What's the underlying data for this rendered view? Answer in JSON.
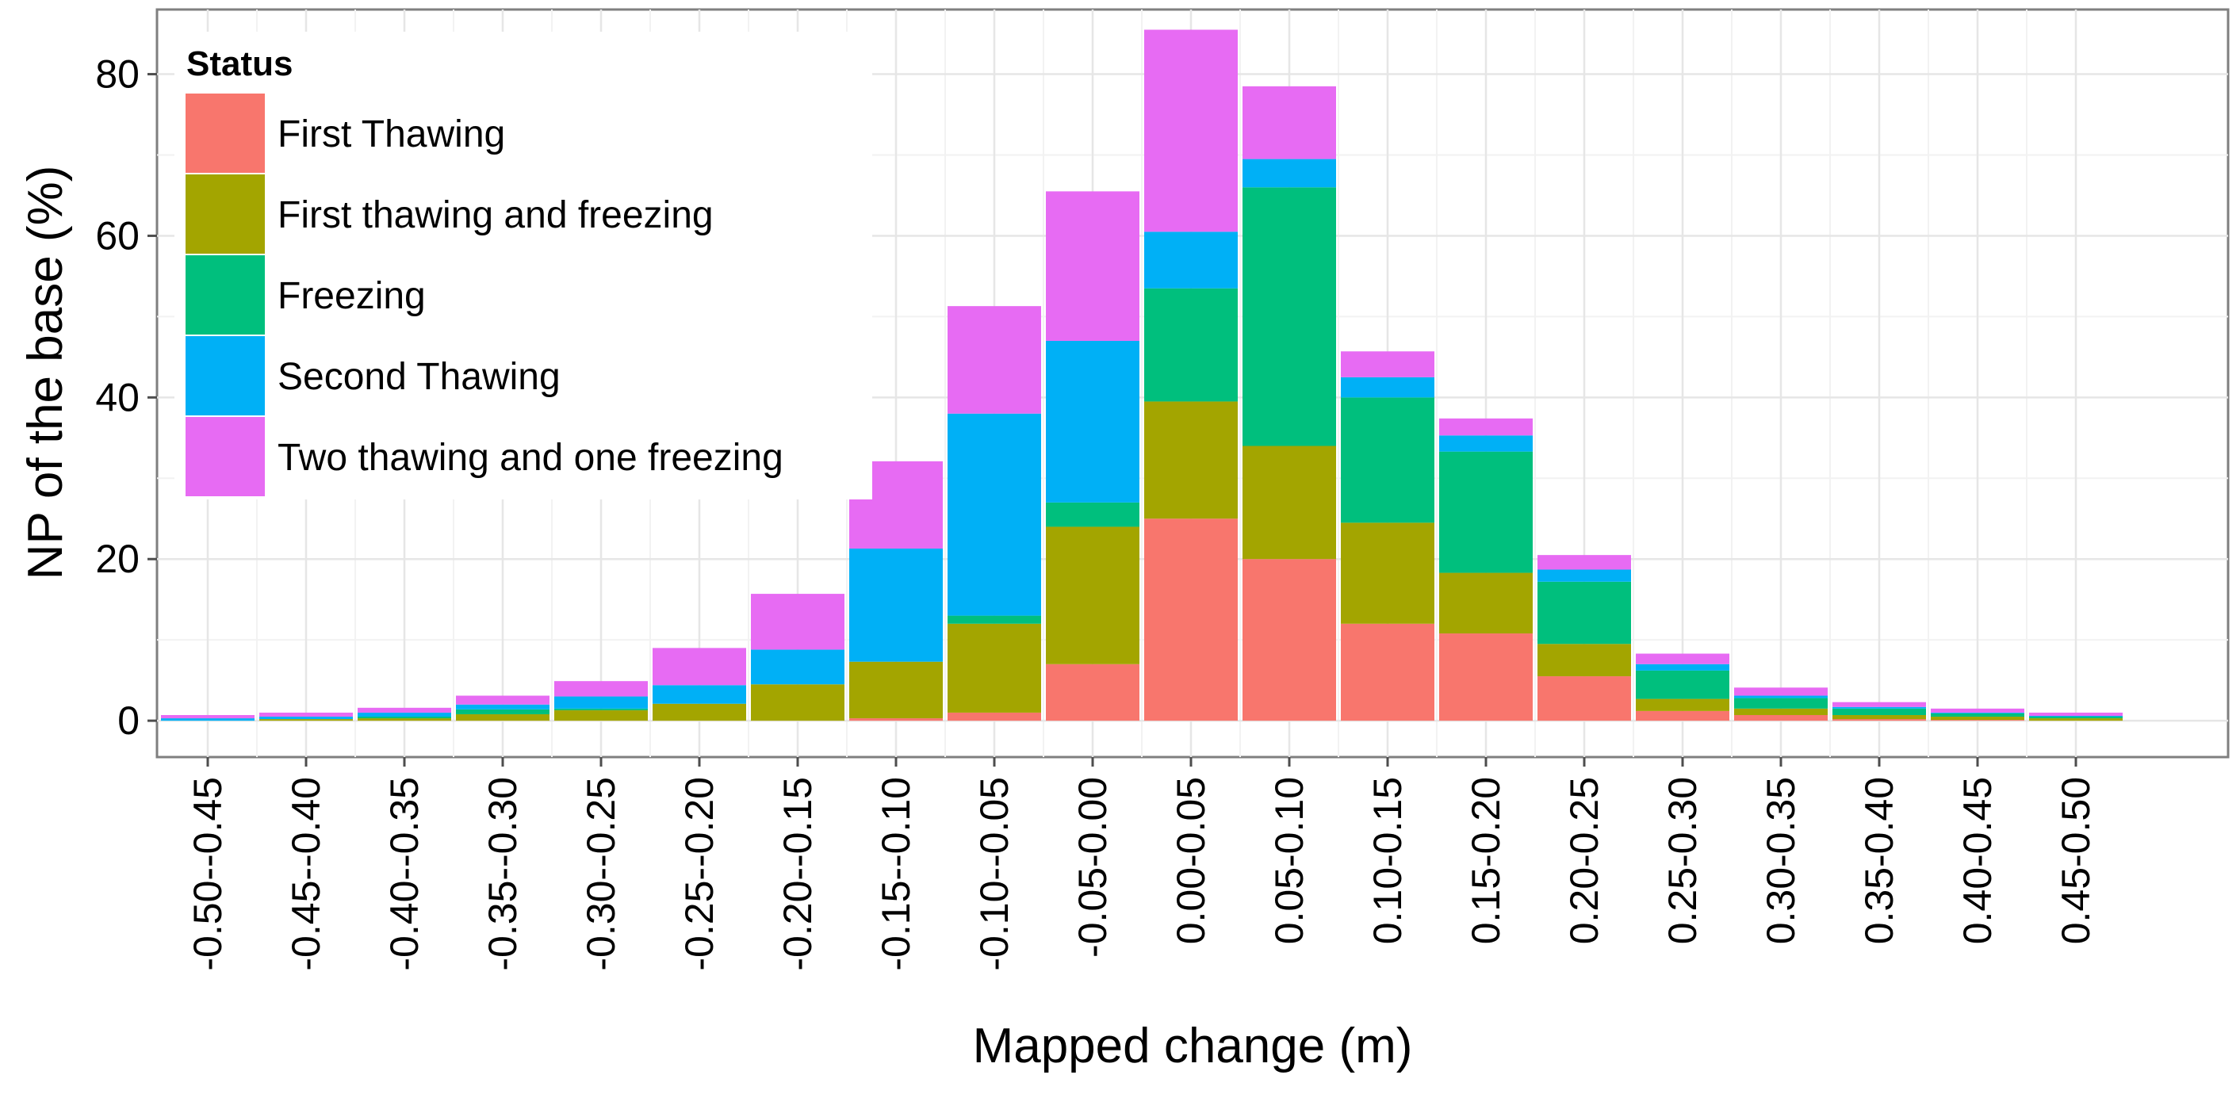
{
  "chart_data": {
    "type": "bar",
    "stacked": true,
    "xlabel": "Mapped change (m)",
    "ylabel": "NP of the base (%)",
    "ylim": [
      -4.5,
      88
    ],
    "yticks": [
      0,
      20,
      40,
      60,
      80
    ],
    "grid": true,
    "legend": {
      "title": "Status",
      "placement": "top-left-inside"
    },
    "categories": [
      "-0.50--0.45",
      "-0.45--0.40",
      "-0.40--0.35",
      "-0.35--0.30",
      "-0.30--0.25",
      "-0.25--0.20",
      "-0.20--0.15",
      "-0.15--0.10",
      "-0.10--0.05",
      "-0.05-0.00",
      "0.00-0.05",
      "0.05-0.10",
      "0.10-0.15",
      "0.15-0.20",
      "0.20-0.25",
      "0.25-0.30",
      "0.30-0.35",
      "0.35-0.40",
      "0.40-0.45",
      "0.45-0.50"
    ],
    "series": [
      {
        "name": "First Thawing",
        "color": "#F8766D",
        "values": [
          0,
          0,
          0,
          0,
          0,
          0,
          0,
          0.3,
          1,
          7,
          25,
          20,
          12,
          10.8,
          5.5,
          1.2,
          0.7,
          0.2,
          0.1,
          0
        ]
      },
      {
        "name": "First thawing and freezing",
        "color": "#A3A500",
        "values": [
          0,
          0.2,
          0.3,
          0.8,
          1.3,
          2.1,
          4.5,
          7,
          11,
          17,
          14.5,
          14,
          12.5,
          7.5,
          4,
          1.5,
          0.8,
          0.5,
          0.4,
          0.3
        ]
      },
      {
        "name": "Freezing",
        "color": "#00BF7D",
        "values": [
          0,
          0,
          0.2,
          0.6,
          0.2,
          0,
          0,
          0,
          1,
          3,
          14,
          32,
          15.5,
          15,
          7.7,
          3.5,
          1.3,
          0.8,
          0.4,
          0.2
        ]
      },
      {
        "name": "Second Thawing",
        "color": "#00B0F6",
        "values": [
          0.3,
          0.3,
          0.5,
          0.6,
          1.5,
          2.3,
          4.3,
          14,
          25,
          20,
          7,
          3.5,
          2.5,
          2,
          1.5,
          0.8,
          0.3,
          0.2,
          0.1,
          0.1
        ]
      },
      {
        "name": "Two thawing and one freezing",
        "color": "#E76BF3",
        "values": [
          0.4,
          0.5,
          0.6,
          1.1,
          1.9,
          4.6,
          6.9,
          10.8,
          13.3,
          18.5,
          25,
          9,
          3.2,
          2.1,
          1.8,
          1.3,
          1,
          0.6,
          0.5,
          0.4
        ]
      }
    ]
  }
}
